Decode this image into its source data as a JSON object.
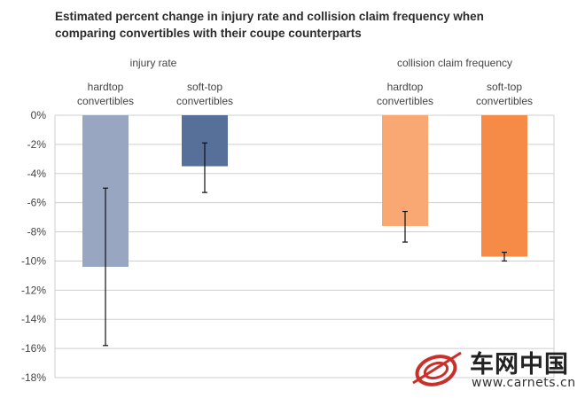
{
  "chart_data": {
    "type": "bar",
    "title_lines": [
      "Estimated percent change in injury rate and collision claim frequency when",
      "comparing convertibles with their coupe counterparts"
    ],
    "groups": [
      {
        "label": "injury rate",
        "bars": [
          {
            "label_lines": [
              "hardtop",
              "convertibles"
            ],
            "value": -10.4,
            "err_low": -15.8,
            "err_high": -5.0,
            "color": "#98a6c2"
          },
          {
            "label_lines": [
              "soft-top",
              "convertibles"
            ],
            "value": -3.5,
            "err_low": -5.3,
            "err_high": -1.9,
            "color": "#56709a"
          }
        ]
      },
      {
        "label": "collision claim frequency",
        "bars": [
          {
            "label_lines": [
              "hardtop",
              "convertibles"
            ],
            "value": -7.6,
            "err_low": -8.7,
            "err_high": -6.6,
            "color": "#f9a874"
          },
          {
            "label_lines": [
              "soft-top",
              "convertibles"
            ],
            "value": -9.7,
            "err_low": -10.0,
            "err_high": -9.4,
            "color": "#f68b48"
          }
        ]
      }
    ],
    "y_ticks": [
      "0%",
      "-2%",
      "-4%",
      "-6%",
      "-8%",
      "-10%",
      "-12%",
      "-14%",
      "-16%",
      "-18%"
    ],
    "ylim": [
      -18,
      0
    ],
    "grid": true
  },
  "watermark": {
    "name": "车网中国",
    "url": "www.carnets.cn"
  }
}
